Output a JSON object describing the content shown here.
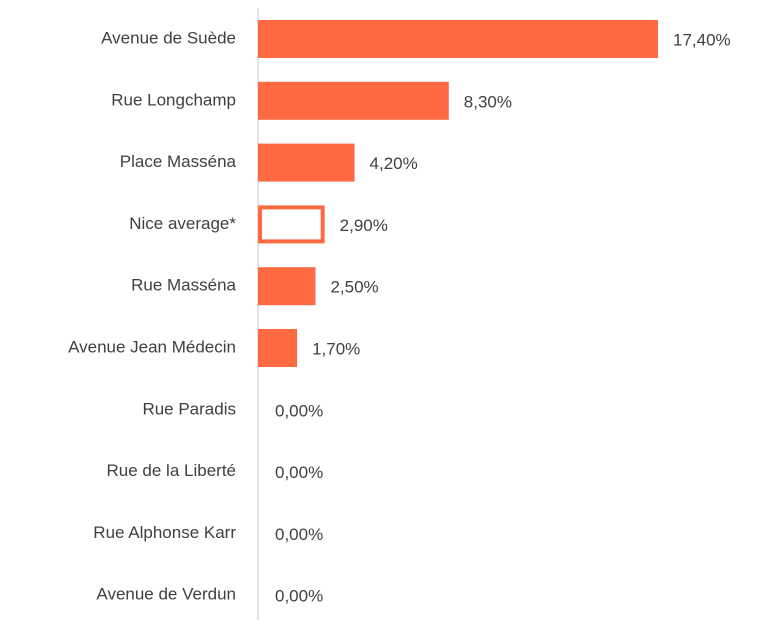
{
  "chart_data": {
    "type": "bar",
    "orientation": "horizontal",
    "categories": [
      "Avenue de Suède",
      "Rue Longchamp",
      "Place Masséna",
      "Nice average*",
      "Rue Masséna",
      "Avenue Jean Médecin",
      "Rue Paradis",
      "Rue de la Liberté",
      "Rue Alphonse Karr",
      "Avenue de Verdun"
    ],
    "values": [
      17.4,
      8.3,
      4.2,
      2.9,
      2.5,
      1.7,
      0,
      0,
      0,
      0
    ],
    "value_labels": [
      "17,40%",
      "8,30%",
      "4,20%",
      "2,90%",
      "2,50%",
      "1,70%",
      "0,00%",
      "0,00%",
      "0,00%",
      "0,00%"
    ],
    "color": "#ff6a43",
    "outline_index": 3
  }
}
